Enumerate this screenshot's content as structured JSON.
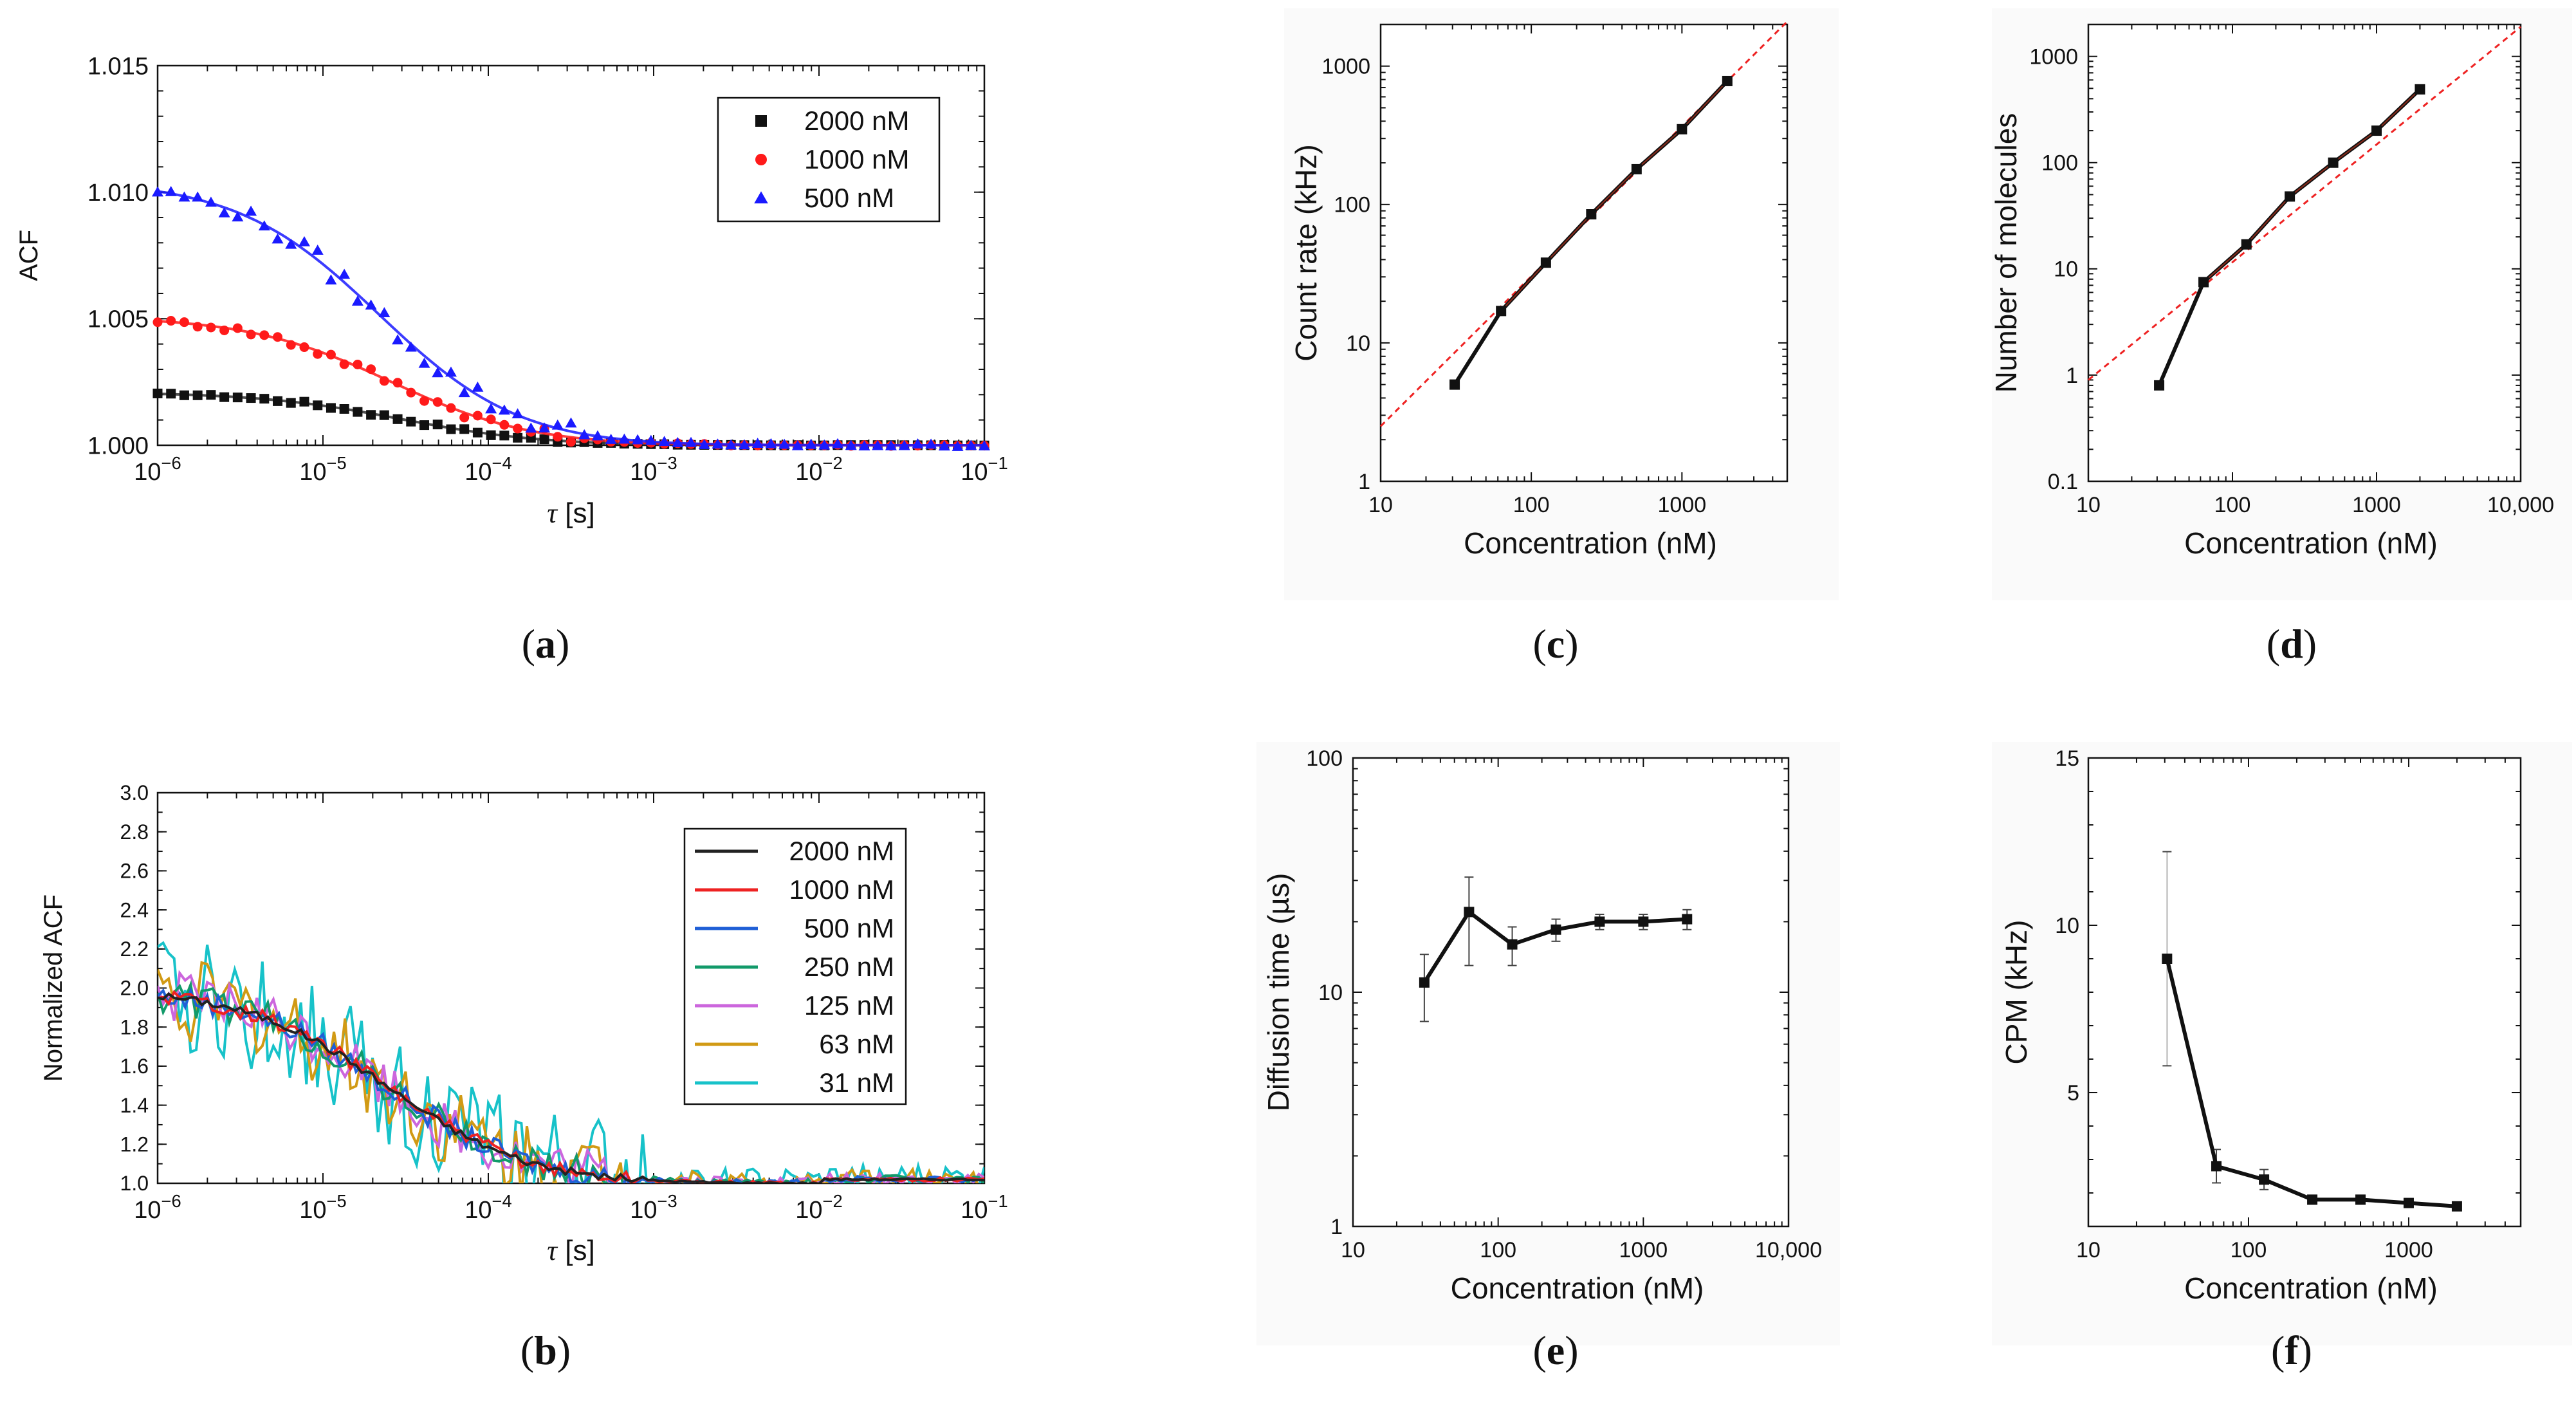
{
  "chart_data": [
    {
      "id": "a",
      "caption": "a",
      "type": "scatter",
      "xscale": "log",
      "xlim": [
        1e-06,
        0.1
      ],
      "xticks": [
        "10^-6",
        "10^-5",
        "10^-4",
        "10^-3",
        "10^-2",
        "10^-1"
      ],
      "ylim": [
        1.0,
        1.015
      ],
      "yticks": [
        "1.000",
        "1.005",
        "1.010",
        "1.015"
      ],
      "ylabel": "ACF",
      "xlabel": "τ [s]",
      "series": [
        {
          "name": "2000 nM",
          "color": "#111111",
          "marker": "square",
          "amp": 0.0021,
          "tau": 3e-05,
          "noise": 7e-05
        },
        {
          "name": "1000 nM",
          "color": "#ff1a1a",
          "marker": "circle",
          "amp": 0.0051,
          "tau": 2.6e-05,
          "noise": 0.0002
        },
        {
          "name": "500 nM",
          "color": "#1a1aff",
          "marker": "triangle",
          "amp": 0.0105,
          "tau": 2.2e-05,
          "noise": 0.0004
        }
      ],
      "legend": "top-right"
    },
    {
      "id": "b",
      "caption": "b",
      "type": "line",
      "xscale": "log",
      "xlim": [
        1e-06,
        0.1
      ],
      "xticks": [
        "10^-6",
        "10^-5",
        "10^-4",
        "10^-3",
        "10^-2",
        "10^-1"
      ],
      "ylim": [
        1.0,
        3.0
      ],
      "yticks": [
        "1.0",
        "1.2",
        "1.4",
        "1.6",
        "1.8",
        "2.0",
        "2.2",
        "2.4",
        "2.6",
        "2.8",
        "3.0"
      ],
      "ylabel": "Normalized ACF",
      "xlabel": "τ [s]",
      "series": [
        {
          "name": "2000 nM",
          "color": "#222222",
          "noise": 0.02
        },
        {
          "name": "1000 nM",
          "color": "#ee2222",
          "noise": 0.04
        },
        {
          "name": "500 nM",
          "color": "#1f5fd6",
          "noise": 0.06
        },
        {
          "name": "250 nM",
          "color": "#129a6a",
          "noise": 0.09
        },
        {
          "name": "125 nM",
          "color": "#cc66dd",
          "noise": 0.13
        },
        {
          "name": "63 nM",
          "color": "#d19a14",
          "noise": 0.22
        },
        {
          "name": "31 nM",
          "color": "#17c2c9",
          "noise": 0.3
        }
      ],
      "legend": "right"
    },
    {
      "id": "c",
      "caption": "c",
      "type": "line",
      "xscale": "log",
      "yscale": "log",
      "xlim": [
        10,
        5000
      ],
      "ylim": [
        1,
        2000
      ],
      "xticks": [
        "10",
        "100",
        "1000"
      ],
      "yticks": [
        "1",
        "10",
        "100",
        "1000"
      ],
      "xlabel": "Concentration (nM)",
      "ylabel": "Count rate (kHz)",
      "x": [
        31,
        63,
        125,
        250,
        500,
        1000,
        2000
      ],
      "series": [
        {
          "name": "data",
          "values": [
            5,
            17,
            38,
            85,
            180,
            350,
            780
          ]
        }
      ],
      "fit": {
        "x": [
          10,
          5000
        ],
        "y": [
          2.5,
          2100
        ]
      }
    },
    {
      "id": "d",
      "caption": "d",
      "type": "line",
      "xscale": "log",
      "yscale": "log",
      "xlim": [
        10,
        10000
      ],
      "ylim": [
        0.1,
        2000
      ],
      "xticks": [
        "10",
        "100",
        "1000",
        "10,000"
      ],
      "yticks": [
        "0.1",
        "1",
        "10",
        "100",
        "1000"
      ],
      "xlabel": "Concentration (nM)",
      "ylabel": "Number of molecules",
      "x": [
        31,
        63,
        125,
        250,
        500,
        1000,
        2000
      ],
      "series": [
        {
          "name": "data",
          "values": [
            0.8,
            7.5,
            17,
            48,
            100,
            200,
            490
          ]
        }
      ],
      "fit": {
        "x": [
          10,
          10000
        ],
        "y": [
          0.9,
          1900
        ]
      }
    },
    {
      "id": "e",
      "caption": "e",
      "type": "line",
      "xscale": "log",
      "yscale": "log",
      "xlim": [
        10,
        10000
      ],
      "ylim": [
        1,
        100
      ],
      "xticks": [
        "10",
        "100",
        "1000",
        "10,000"
      ],
      "yticks": [
        "1",
        "10",
        "100"
      ],
      "xlabel": "Concentration (nM)",
      "ylabel": "Diffusion time (µs)",
      "x": [
        31,
        63,
        125,
        250,
        500,
        1000,
        2000
      ],
      "series": [
        {
          "name": "data",
          "values": [
            11,
            22,
            16,
            18.5,
            20,
            20,
            20.5
          ]
        }
      ],
      "errors": [
        3.5,
        9,
        3,
        2,
        1.5,
        1.5,
        2
      ]
    },
    {
      "id": "f",
      "caption": "f",
      "type": "line",
      "xscale": "log",
      "xlim": [
        10,
        5000
      ],
      "ylim": [
        1,
        15
      ],
      "xticks": [
        "10",
        "100",
        "1000"
      ],
      "yticks": [
        "5",
        "10",
        "15"
      ],
      "xlabel": "Concentration (nM)",
      "ylabel": "CPM (kHz)",
      "x": [
        31,
        63,
        125,
        250,
        500,
        1000,
        2000
      ],
      "series": [
        {
          "name": "data",
          "values": [
            9.0,
            2.8,
            2.4,
            1.8,
            1.8,
            1.7,
            1.6
          ]
        }
      ],
      "errors": [
        3.2,
        0.5,
        0.3,
        0.1,
        0.1,
        0.1,
        0.1
      ]
    }
  ]
}
